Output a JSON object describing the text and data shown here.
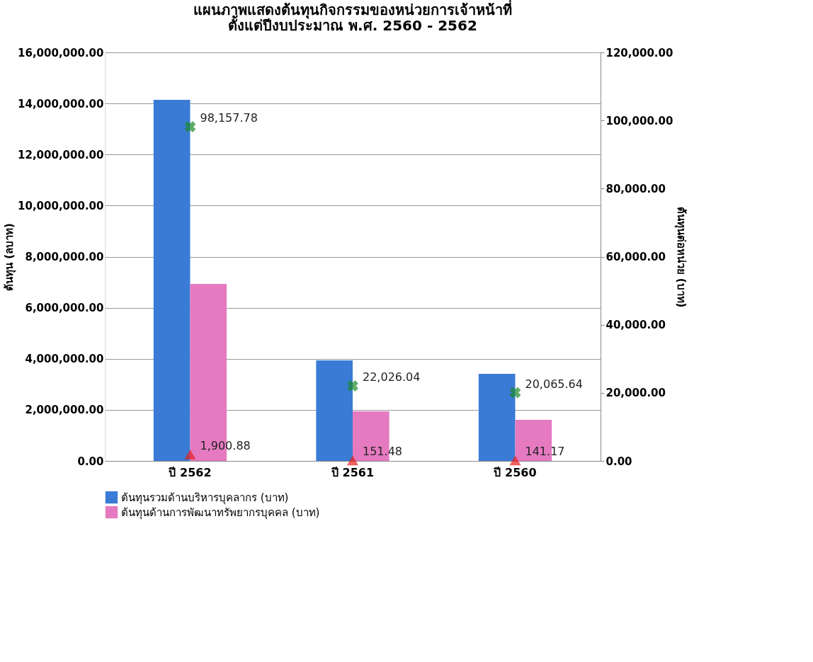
{
  "chart_data": {
    "type": "bar",
    "title": "แผนภาพแสดงต้นทุนกิจกรรมของหน่วยการเจ้าหน้าที่",
    "subtitle": "ตั้งแต่ปีงบประมาณ พ.ศ. 2560 - 2562",
    "ylabel": "ต้นทุน (ลบาท)",
    "y2label": "ต้นทุนต่อหน่วย (บาท)",
    "categories": [
      "ปี 2562",
      "ปี 2561",
      "ปี 2560"
    ],
    "series": [
      {
        "name": "ต้นทุนรวมด้านบริหารบุคลากร (บาท)",
        "color": "#3a7bd5",
        "values": [
          14140000,
          3940000,
          3410000
        ]
      },
      {
        "name": "ต้นทุนด้านการพัฒนาทรัพยากรบุคคล (บาท)",
        "color": "#e57ac0",
        "values": [
          6930000,
          1940000,
          1610000
        ]
      },
      {
        "type": "scatter",
        "axis": "y2",
        "marker": "cross",
        "color": "#1a8a2a",
        "values": [
          98157.78,
          22026.04,
          20065.64
        ],
        "value_labels": [
          "98,157.78",
          "22,026.04",
          "20,065.64"
        ]
      },
      {
        "type": "scatter",
        "axis": "y2",
        "marker": "triangle",
        "color": "#e8201c",
        "values": [
          1900.88,
          151.48,
          141.17
        ],
        "value_labels": [
          "1,900.88",
          "151.48",
          "141.17"
        ]
      }
    ],
    "ylim": [
      0,
      16000000
    ],
    "yticks": [
      {
        "value": 0,
        "label": "0.00"
      },
      {
        "value": 2000000,
        "label": "2,000,000.00"
      },
      {
        "value": 4000000,
        "label": "4,000,000.00"
      },
      {
        "value": 6000000,
        "label": "6,000,000.00"
      },
      {
        "value": 8000000,
        "label": "8,000,000.00"
      },
      {
        "value": 10000000,
        "label": "10,000,000.00"
      },
      {
        "value": 12000000,
        "label": "12,000,000.00"
      },
      {
        "value": 14000000,
        "label": "14,000,000.00"
      },
      {
        "value": 16000000,
        "label": "16,000,000.00"
      }
    ],
    "y2lim": [
      0,
      120000
    ],
    "y2ticks": [
      {
        "value": 0,
        "label": "0.00"
      },
      {
        "value": 20000,
        "label": "20,000.00"
      },
      {
        "value": 40000,
        "label": "40,000.00"
      },
      {
        "value": 60000,
        "label": "60,000.00"
      },
      {
        "value": 80000,
        "label": "80,000.00"
      },
      {
        "value": 100000,
        "label": "100,000.00"
      },
      {
        "value": 120000,
        "label": "120,000.00"
      }
    ],
    "grid": "y",
    "legend": "bottom"
  }
}
